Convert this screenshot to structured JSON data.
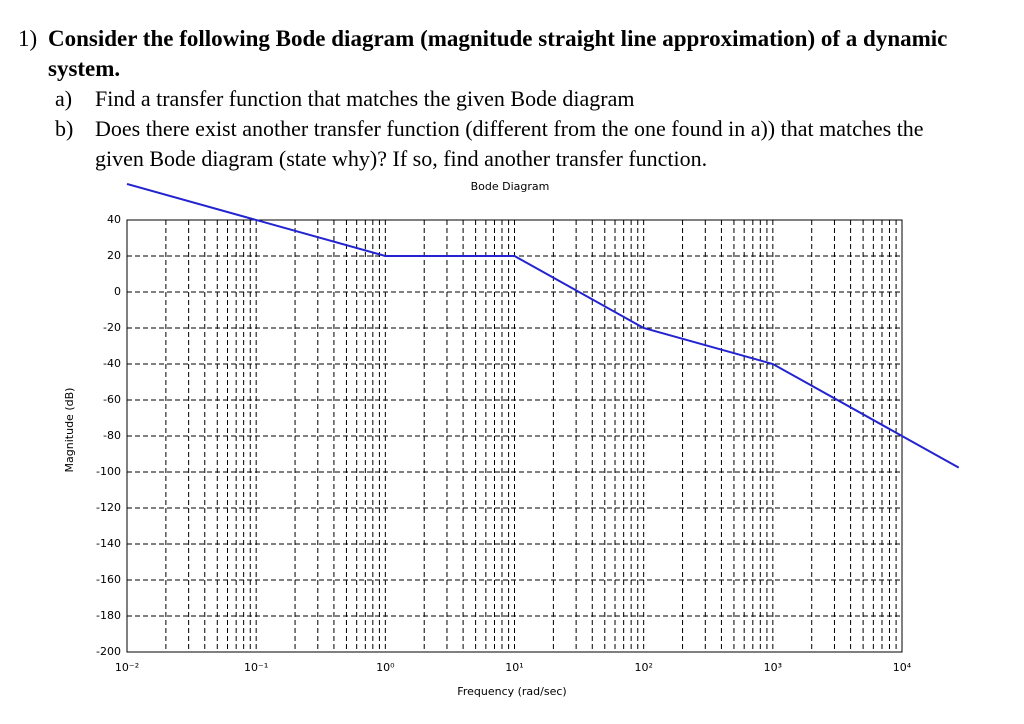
{
  "question": {
    "number": "1)",
    "text": "Consider the following Bode diagram (magnitude straight line approximation) of a dynamic system.",
    "items": [
      {
        "label": "a)",
        "text": "Find a transfer function that matches the given Bode diagram"
      },
      {
        "label": "b)",
        "text": "Does there exist another transfer function (different from the one found in a)) that matches the given Bode diagram (state why)? If so, find another transfer function."
      }
    ]
  },
  "chart_data": {
    "type": "line",
    "title": "Bode Diagram",
    "x_label": "Frequency (rad/sec)",
    "y_label": "Magnitude (dB)",
    "x_scale": "log",
    "grid": true,
    "x": [
      0.01,
      1,
      10,
      100,
      1000,
      10000,
      27500
    ],
    "series": [
      {
        "color": "#2323d0",
        "values": [
          60,
          20,
          20,
          -20,
          -40,
          -80,
          -97.6
        ]
      }
    ],
    "xlim": [
      0.01,
      10000
    ],
    "xticks": [
      {
        "value": 0.01,
        "label": "10⁻²"
      },
      {
        "value": 0.1,
        "label": "10⁻¹"
      },
      {
        "value": 1,
        "label": "10⁰"
      },
      {
        "value": 10,
        "label": "10¹"
      },
      {
        "value": 100,
        "label": "10²"
      },
      {
        "value": 1000,
        "label": "10³"
      },
      {
        "value": 10000,
        "label": "10⁴"
      }
    ],
    "ylim": [
      -200,
      40
    ],
    "yticks": [
      -200,
      -180,
      -160,
      -140,
      -120,
      -100,
      -80,
      -60,
      -40,
      -20,
      0,
      20,
      40
    ]
  }
}
